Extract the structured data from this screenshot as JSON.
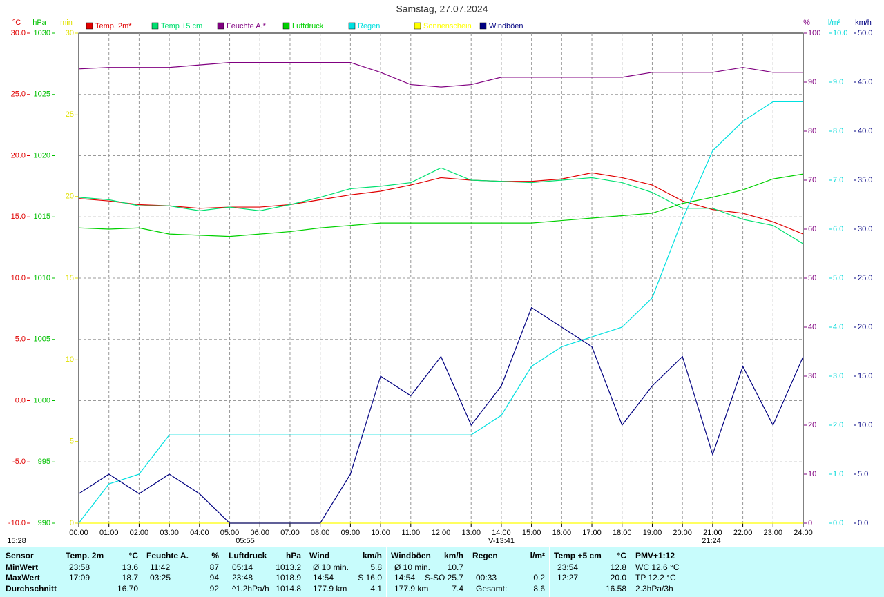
{
  "chart_data": {
    "type": "line",
    "title": "Samstag, 27.07.2024",
    "legend": "top",
    "x": [
      0,
      1,
      2,
      3,
      4,
      5,
      6,
      7,
      8,
      9,
      10,
      11,
      12,
      13,
      14,
      15,
      16,
      17,
      18,
      19,
      20,
      21,
      22,
      23,
      24
    ],
    "xlim": [
      0,
      24
    ],
    "xticks": [
      {
        "value": 0,
        "label": "00:00"
      },
      {
        "value": 1,
        "label": "01:00"
      },
      {
        "value": 2,
        "label": "02:00"
      },
      {
        "value": 3,
        "label": "03:00"
      },
      {
        "value": 4,
        "label": "04:00"
      },
      {
        "value": 5,
        "label": "05:00"
      },
      {
        "value": 6,
        "label": "06:00"
      },
      {
        "value": 7,
        "label": "07:00"
      },
      {
        "value": 8,
        "label": "08:00"
      },
      {
        "value": 9,
        "label": "09:00"
      },
      {
        "value": 10,
        "label": "10:00"
      },
      {
        "value": 11,
        "label": "11:00"
      },
      {
        "value": 12,
        "label": "12:00"
      },
      {
        "value": 13,
        "label": "13:00"
      },
      {
        "value": 14,
        "label": "14:00"
      },
      {
        "value": 15,
        "label": "15:00"
      },
      {
        "value": 16,
        "label": "16:00"
      },
      {
        "value": 17,
        "label": "17:00"
      },
      {
        "value": 18,
        "label": "18:00"
      },
      {
        "value": 19,
        "label": "19:00"
      },
      {
        "value": 20,
        "label": "20:00"
      },
      {
        "value": 21,
        "label": "21:00"
      },
      {
        "value": 22,
        "label": "22:00"
      },
      {
        "value": 23,
        "label": "23:00"
      },
      {
        "value": 24,
        "label": "24:00"
      }
    ],
    "grid": true,
    "axes": [
      {
        "label": "°C",
        "color": "#e00000",
        "side": "left",
        "lim": [
          -10,
          30
        ],
        "ticks": [
          {
            "value": -10,
            "label": "-10.0"
          },
          {
            "value": -5,
            "label": "-5.0"
          },
          {
            "value": 0,
            "label": "0.0"
          },
          {
            "value": 5,
            "label": "5.0"
          },
          {
            "value": 10,
            "label": "10.0"
          },
          {
            "value": 15,
            "label": "15.0"
          },
          {
            "value": 20,
            "label": "20.0"
          },
          {
            "value": 25,
            "label": "25.0"
          },
          {
            "value": 30,
            "label": "30.0"
          }
        ]
      },
      {
        "label": "hPa",
        "color": "#00c000",
        "side": "left",
        "lim": [
          990,
          1030
        ],
        "ticks": [
          990,
          995,
          1000,
          1005,
          1010,
          1015,
          1020,
          1025,
          1030
        ]
      },
      {
        "label": "min",
        "color": "#e0e000",
        "side": "left",
        "lim": [
          0,
          30
        ],
        "ticks": [
          0,
          5,
          10,
          15,
          20,
          25,
          30
        ]
      },
      {
        "label": "%",
        "color": "#800080",
        "side": "right",
        "lim": [
          0,
          100
        ],
        "ticks": [
          0,
          10,
          20,
          30,
          40,
          50,
          60,
          70,
          80,
          90,
          100
        ]
      },
      {
        "label": "l/m²",
        "color": "#00d8d8",
        "side": "right",
        "lim": [
          0,
          10
        ],
        "ticks": [
          {
            "value": 0,
            "label": "0.0"
          },
          {
            "value": 1,
            "label": "1.0"
          },
          {
            "value": 2,
            "label": "2.0"
          },
          {
            "value": 3,
            "label": "3.0"
          },
          {
            "value": 4,
            "label": "4.0"
          },
          {
            "value": 5,
            "label": "5.0"
          },
          {
            "value": 6,
            "label": "6.0"
          },
          {
            "value": 7,
            "label": "7.0"
          },
          {
            "value": 8,
            "label": "8.0"
          },
          {
            "value": 9,
            "label": "9.0"
          },
          {
            "value": 10,
            "label": "10.0"
          }
        ]
      },
      {
        "label": "km/h",
        "color": "#000080",
        "side": "right",
        "lim": [
          0,
          50
        ],
        "ticks": [
          {
            "value": 0,
            "label": "0.0"
          },
          {
            "value": 5,
            "label": "5.0"
          },
          {
            "value": 10,
            "label": "10.0"
          },
          {
            "value": 15,
            "label": "15.0"
          },
          {
            "value": 20,
            "label": "20.0"
          },
          {
            "value": 25,
            "label": "25.0"
          },
          {
            "value": 30,
            "label": "30.0"
          },
          {
            "value": 35,
            "label": "35.0"
          },
          {
            "value": 40,
            "label": "40.0"
          },
          {
            "value": 45,
            "label": "45.0"
          },
          {
            "value": 50,
            "label": "50.0"
          }
        ]
      }
    ],
    "series": [
      {
        "name": "Temp. 2m*",
        "color": "#e00000",
        "axis": 0,
        "values": [
          16.5,
          16.3,
          16.0,
          15.9,
          15.7,
          15.8,
          15.8,
          16.0,
          16.4,
          16.8,
          17.1,
          17.6,
          18.2,
          18.0,
          17.9,
          17.9,
          18.1,
          18.6,
          18.2,
          17.6,
          16.3,
          15.6,
          15.3,
          14.6,
          13.6
        ]
      },
      {
        "name": "Temp +5 cm",
        "color": "#00e070",
        "axis": 0,
        "values": [
          16.6,
          16.4,
          15.9,
          15.9,
          15.5,
          15.8,
          15.5,
          16.0,
          16.6,
          17.3,
          17.5,
          17.8,
          19.0,
          18.0,
          17.9,
          17.8,
          18.0,
          18.2,
          17.8,
          17.0,
          15.7,
          15.7,
          14.8,
          14.3,
          12.8
        ]
      },
      {
        "name": "Feuchte A.*",
        "color": "#800080",
        "axis": 3,
        "values": [
          92.7,
          93,
          93,
          93,
          93.5,
          94,
          94,
          94,
          94,
          94,
          92,
          89.5,
          89,
          89.5,
          91,
          91,
          91,
          91,
          91,
          92,
          92,
          92,
          93,
          92,
          92
        ]
      },
      {
        "name": "Luftdruck",
        "color": "#00d000",
        "axis": 1,
        "values": [
          1014.1,
          1014,
          1014.1,
          1013.6,
          1013.5,
          1013.4,
          1013.6,
          1013.8,
          1014.1,
          1014.3,
          1014.5,
          1014.5,
          1014.5,
          1014.5,
          1014.5,
          1014.5,
          1014.7,
          1014.9,
          1015.1,
          1015.3,
          1016.1,
          1016.6,
          1017.2,
          1018.1,
          1018.5
        ]
      },
      {
        "name": "Regen",
        "color": "#00e0e0",
        "axis": 4,
        "values": [
          0,
          0.8,
          1.0,
          1.8,
          1.8,
          1.8,
          1.8,
          1.8,
          1.8,
          1.8,
          1.8,
          1.8,
          1.8,
          1.8,
          2.2,
          3.2,
          3.6,
          3.8,
          4.0,
          4.6,
          6.2,
          7.6,
          8.2,
          8.6,
          8.6
        ]
      },
      {
        "name": "Sonnenschein",
        "color": "#ffff00",
        "axis": 2,
        "values": [
          0,
          0,
          0,
          0,
          0,
          0,
          0,
          0,
          0,
          0,
          0,
          0,
          0,
          0,
          0,
          0,
          0,
          0,
          0,
          0,
          0,
          0,
          0,
          0,
          0
        ]
      },
      {
        "name": "Windböen",
        "color": "#000080",
        "axis": 5,
        "values": [
          3,
          5,
          3,
          5,
          3,
          0,
          0,
          0,
          0,
          5,
          15,
          13,
          17,
          10,
          14,
          22,
          20,
          18,
          10,
          14,
          17,
          7,
          16,
          10,
          17
        ]
      }
    ],
    "annotations": [
      "15:28",
      "05:55",
      "V-13:41",
      "21:24"
    ]
  },
  "table": {
    "groups": [
      {
        "name": "Sensor",
        "rows": [
          [
            "MinWert"
          ],
          [
            "MaxWert"
          ],
          [
            "Durchschnitt"
          ]
        ]
      },
      {
        "name": "Temp. 2m",
        "unit": "°C",
        "rows": [
          [
            "23:58",
            "13.6"
          ],
          [
            "17:09",
            "18.7"
          ],
          [
            null,
            "16.70"
          ]
        ]
      },
      {
        "name": "Feuchte A.",
        "unit": "%",
        "rows": [
          [
            "11:42",
            "87"
          ],
          [
            "03:25",
            "94"
          ],
          [
            null,
            "92"
          ]
        ]
      },
      {
        "name": "Luftdruck",
        "unit": "hPa",
        "rows": [
          [
            "05:14",
            "1013.2"
          ],
          [
            "23:48",
            "1018.9"
          ],
          [
            "^1.2hPa/h",
            "1014.8"
          ]
        ]
      },
      {
        "name": "Wind",
        "unit": "km/h",
        "rows": [
          [
            "Ø 10 min.",
            "5.8"
          ],
          [
            "14:54",
            "S 16.0"
          ],
          [
            "177.9 km",
            "4.1"
          ]
        ]
      },
      {
        "name": "Windböen",
        "unit": "km/h",
        "rows": [
          [
            "Ø 10 min.",
            "10.7"
          ],
          [
            "14:54",
            "S-SO 25.7"
          ],
          [
            "177.9 km",
            "7.4"
          ]
        ]
      },
      {
        "name": "Regen",
        "unit": "l/m²",
        "rows": [
          [
            null,
            null
          ],
          [
            "00:33",
            "0.2"
          ],
          [
            "Gesamt:",
            "8.6"
          ]
        ]
      },
      {
        "name": "Temp +5 cm",
        "unit": "°C",
        "rows": [
          [
            "23:54",
            "12.8"
          ],
          [
            "12:27",
            "20.0"
          ],
          [
            null,
            "16.58"
          ]
        ]
      },
      {
        "name": "PMV+1:12",
        "rows": [
          [
            "WC 12.6 °C"
          ],
          [
            "TP 12.2 °C"
          ],
          [
            "2.3hPa/3h"
          ]
        ]
      }
    ]
  }
}
